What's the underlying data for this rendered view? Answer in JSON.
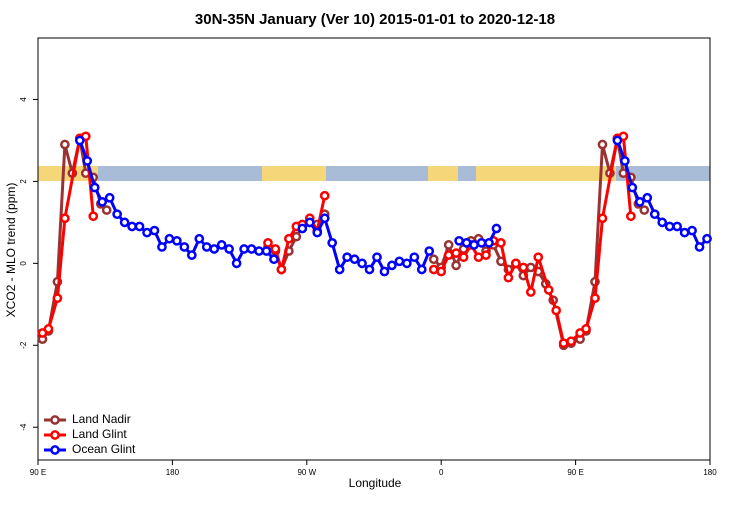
{
  "chart_data": {
    "type": "line",
    "title": "30N-35N January (Ver 10)   2015-01-01 to 2020-12-18",
    "x_label": "Longitude",
    "y_label": "XCO2 - MLO trend (ppm)",
    "xlim": [
      90,
      540
    ],
    "xticks": [
      {
        "value": 90,
        "label": "90 E"
      },
      {
        "value": 180,
        "label": "180"
      },
      {
        "value": 270,
        "label": "90 W"
      },
      {
        "value": 360,
        "label": "0"
      },
      {
        "value": 450,
        "label": "90 E"
      },
      {
        "value": 540,
        "label": "180"
      }
    ],
    "ylim": [
      -4.8,
      5.5
    ],
    "yticks": [
      -4,
      -2,
      0,
      2,
      4
    ],
    "legend": "bottom-left",
    "series": [
      {
        "name": "Land Nadir",
        "color": "#993333",
        "x": [
          93,
          97,
          103,
          108,
          113,
          118,
          122,
          127,
          132,
          136,
          null,
          244,
          249,
          253,
          258,
          263,
          267,
          272,
          277,
          282,
          null,
          355,
          360,
          365,
          370,
          375,
          380,
          385,
          390,
          395,
          400,
          405,
          410,
          415,
          420,
          425,
          430,
          435,
          442,
          447,
          453,
          457,
          463,
          468,
          473,
          478,
          482,
          487,
          492,
          496
        ],
        "values": [
          -1.85,
          -1.65,
          -0.45,
          2.9,
          2.2,
          3.05,
          2.2,
          2.1,
          1.45,
          1.3,
          null,
          0.4,
          0.3,
          -0.15,
          0.3,
          0.65,
          0.9,
          1.0,
          0.95,
          1.2,
          null,
          0.1,
          -0.1,
          0.45,
          -0.05,
          0.35,
          0.55,
          0.6,
          0.3,
          0.45,
          0.05,
          -0.15,
          0,
          -0.3,
          -0.1,
          -0.2,
          -0.5,
          -0.9,
          -2.0,
          -1.95,
          -1.85,
          -1.65,
          -0.45,
          2.9,
          2.2,
          3.05,
          2.2,
          2.1,
          1.45,
          1.3
        ]
      },
      {
        "name": "Land Glint",
        "color": "#ff0000",
        "x": [
          93,
          97,
          103,
          108,
          118,
          122,
          127,
          null,
          244,
          249,
          253,
          258,
          263,
          267,
          272,
          277,
          282,
          null,
          355,
          360,
          365,
          370,
          375,
          380,
          385,
          390,
          395,
          400,
          405,
          410,
          415,
          420,
          425,
          432,
          437,
          442,
          447,
          453,
          457,
          463,
          468,
          478,
          482,
          487
        ],
        "values": [
          -1.7,
          -1.6,
          -0.85,
          1.1,
          3.05,
          3.1,
          1.15,
          null,
          0.5,
          0.35,
          -0.15,
          0.6,
          0.9,
          0.95,
          1.1,
          0.8,
          1.65,
          null,
          -0.15,
          -0.2,
          0.2,
          0.25,
          0.15,
          0.45,
          0.15,
          0.2,
          0.55,
          0.5,
          -0.35,
          0,
          -0.1,
          -0.7,
          0.15,
          -0.65,
          -1.15,
          -1.95,
          -1.9,
          -1.7,
          -1.6,
          -0.85,
          1.1,
          3.05,
          3.1,
          1.15
        ]
      },
      {
        "name": "Ocean Glint",
        "color": "#0000ff",
        "x": [
          118,
          123,
          128,
          133,
          138,
          143,
          148,
          153,
          158,
          163,
          168,
          173,
          178,
          183,
          188,
          193,
          198,
          203,
          208,
          213,
          218,
          223,
          228,
          233,
          238,
          243,
          248,
          null,
          267,
          272,
          277,
          282,
          287,
          292,
          297,
          302,
          307,
          312,
          317,
          322,
          327,
          332,
          337,
          342,
          347,
          352,
          null,
          372,
          377,
          382,
          387,
          392,
          397,
          null,
          478,
          483,
          488,
          493,
          498,
          503,
          508,
          513,
          518,
          523,
          528,
          533,
          538
        ],
        "values": [
          3.0,
          2.5,
          1.85,
          1.5,
          1.6,
          1.2,
          1.0,
          0.9,
          0.9,
          0.75,
          0.8,
          0.4,
          0.6,
          0.55,
          0.4,
          0.2,
          0.6,
          0.4,
          0.35,
          0.45,
          0.35,
          0.0,
          0.35,
          0.35,
          0.3,
          0.3,
          0.1,
          null,
          0.85,
          1.0,
          0.75,
          1.1,
          0.5,
          -0.15,
          0.15,
          0.1,
          0.0,
          -0.15,
          0.15,
          -0.2,
          -0.05,
          0.05,
          0.0,
          0.15,
          -0.15,
          0.3,
          null,
          0.55,
          0.5,
          0.45,
          0.5,
          0.5,
          0.85,
          null,
          3.0,
          2.5,
          1.85,
          1.5,
          1.6,
          1.2,
          1.0,
          0.9,
          0.9,
          0.75,
          0.8,
          0.4,
          0.6
        ]
      }
    ]
  }
}
